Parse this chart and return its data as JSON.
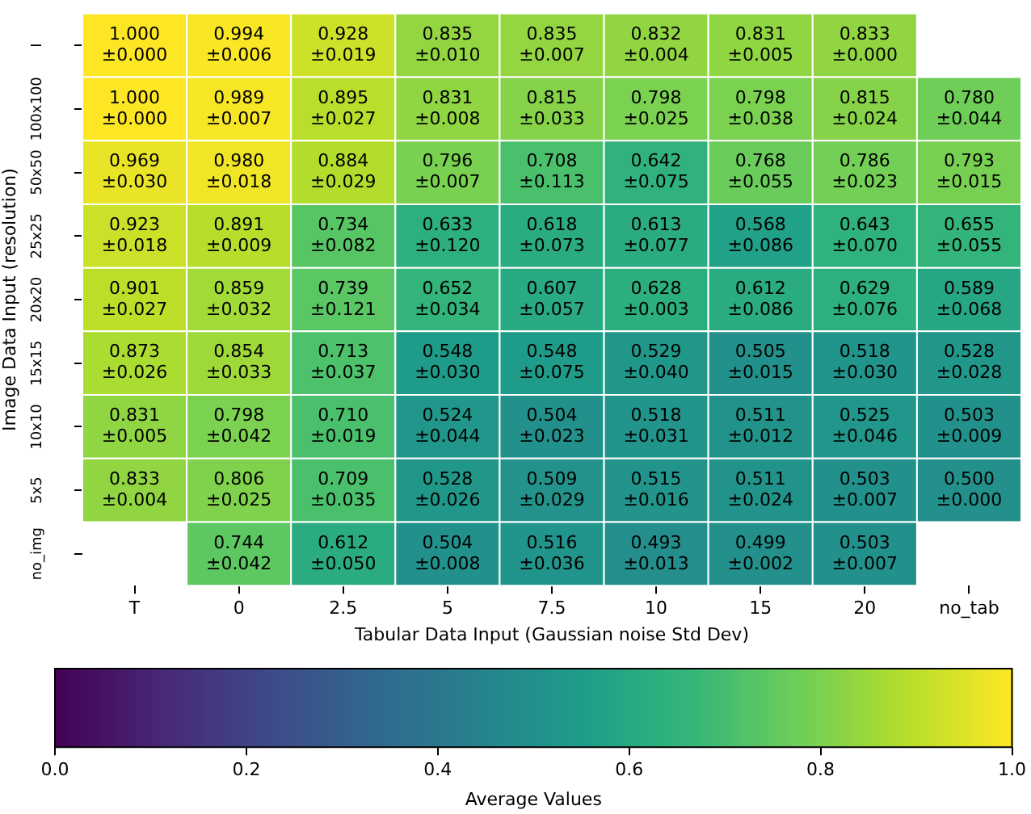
{
  "chart_data": {
    "type": "heatmap",
    "xlabel": "Tabular Data Input (Gaussian noise Std Dev)",
    "ylabel": "Image Data Input (resolution)",
    "clabel": "Average Values",
    "categories": [
      "T",
      "0",
      "2.5",
      "5",
      "7.5",
      "10",
      "15",
      "20",
      "no_tab"
    ],
    "y_categories": [
      "I",
      "100x100",
      "50x50",
      "25x25",
      "20x20",
      "15x15",
      "10x10",
      "5x5",
      "no_img"
    ],
    "cells": [
      [
        1.0,
        0.994,
        0.928,
        0.835,
        0.835,
        0.832,
        0.831,
        0.833,
        null
      ],
      [
        1.0,
        0.989,
        0.895,
        0.831,
        0.815,
        0.798,
        0.798,
        0.815,
        0.78
      ],
      [
        0.969,
        0.98,
        0.884,
        0.796,
        0.708,
        0.642,
        0.768,
        0.786,
        0.793
      ],
      [
        0.923,
        0.891,
        0.734,
        0.633,
        0.618,
        0.613,
        0.568,
        0.643,
        0.655
      ],
      [
        0.901,
        0.859,
        0.739,
        0.652,
        0.607,
        0.628,
        0.612,
        0.629,
        0.589
      ],
      [
        0.873,
        0.854,
        0.713,
        0.548,
        0.548,
        0.529,
        0.505,
        0.518,
        0.528
      ],
      [
        0.831,
        0.798,
        0.71,
        0.524,
        0.504,
        0.518,
        0.511,
        0.525,
        0.503
      ],
      [
        0.833,
        0.806,
        0.709,
        0.528,
        0.509,
        0.515,
        0.511,
        0.503,
        0.5
      ],
      [
        null,
        0.744,
        0.612,
        0.504,
        0.516,
        0.493,
        0.499,
        0.503,
        null
      ]
    ],
    "cell_labels": [
      [
        "1.000\n±0.000",
        "0.994\n±0.006",
        "0.928\n±0.019",
        "0.835\n±0.010",
        "0.835\n±0.007",
        "0.832\n±0.004",
        "0.831\n±0.005",
        "0.833\n±0.000",
        null
      ],
      [
        "1.000\n±0.000",
        "0.989\n±0.007",
        "0.895\n±0.027",
        "0.831\n±0.008",
        "0.815\n±0.033",
        "0.798\n±0.025",
        "0.798\n±0.038",
        "0.815\n±0.024",
        "0.780\n±0.044"
      ],
      [
        "0.969\n±0.030",
        "0.980\n±0.018",
        "0.884\n±0.029",
        "0.796\n±0.007",
        "0.708\n±0.113",
        "0.642\n±0.075",
        "0.768\n±0.055",
        "0.786\n±0.023",
        "0.793\n±0.015"
      ],
      [
        "0.923\n±0.018",
        "0.891\n±0.009",
        "0.734\n±0.082",
        "0.633\n±0.120",
        "0.618\n±0.073",
        "0.613\n±0.077",
        "0.568\n±0.086",
        "0.643\n±0.070",
        "0.655\n±0.055"
      ],
      [
        "0.901\n±0.027",
        "0.859\n±0.032",
        "0.739\n±0.121",
        "0.652\n±0.034",
        "0.607\n±0.057",
        "0.628\n±0.003",
        "0.612\n±0.086",
        "0.629\n±0.076",
        "0.589\n±0.068"
      ],
      [
        "0.873\n±0.026",
        "0.854\n±0.033",
        "0.713\n±0.037",
        "0.548\n±0.030",
        "0.548\n±0.075",
        "0.529\n±0.040",
        "0.505\n±0.015",
        "0.518\n±0.030",
        "0.528\n±0.028"
      ],
      [
        "0.831\n±0.005",
        "0.798\n±0.042",
        "0.710\n±0.019",
        "0.524\n±0.044",
        "0.504\n±0.023",
        "0.518\n±0.031",
        "0.511\n±0.012",
        "0.525\n±0.046",
        "0.503\n±0.009"
      ],
      [
        "0.833\n±0.004",
        "0.806\n±0.025",
        "0.709\n±0.035",
        "0.528\n±0.026",
        "0.509\n±0.029",
        "0.515\n±0.016",
        "0.511\n±0.024",
        "0.503\n±0.007",
        "0.500\n±0.000"
      ],
      [
        null,
        "0.744\n±0.042",
        "0.612\n±0.050",
        "0.504\n±0.008",
        "0.516\n±0.036",
        "0.493\n±0.013",
        "0.499\n±0.002",
        "0.503\n±0.007",
        null
      ]
    ],
    "clim": [
      0,
      1
    ],
    "cticks": [
      {
        "value": 0,
        "label": "0.0"
      },
      {
        "value": 0.2,
        "label": "0.2"
      },
      {
        "value": 0.4,
        "label": "0.4"
      },
      {
        "value": 0.6,
        "label": "0.6"
      },
      {
        "value": 0.8,
        "label": "0.8"
      },
      {
        "value": 1,
        "label": "1.0"
      }
    ]
  }
}
